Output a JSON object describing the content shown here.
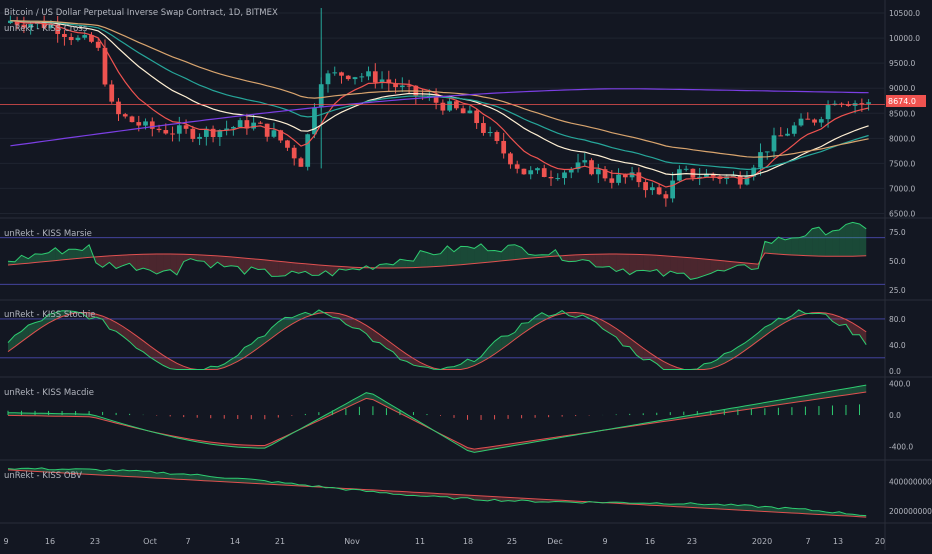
{
  "header": {
    "symbol_title": "Bitcoin / US Dollar Perpetual Inverse Swap Contract, 1D, BITMEX",
    "overlay_title": "unRekt - KISS Cross"
  },
  "price_tag": "8674.0",
  "colors": {
    "background": "#131722",
    "grid": "#1f2430",
    "up": "#26a69a",
    "down": "#ef5350",
    "ema_fast": "#ef5350",
    "ema_slow": "#fff0d4",
    "ema_mid": "#26a69a",
    "ema_long": "#d8a46e",
    "ema_200": "#7b3fe4",
    "signal_green": "#2ecc71",
    "signal_red": "#e05050",
    "band": "#4a4ab0",
    "axis_text": "#b2b5be"
  },
  "chart_data": [
    {
      "type": "candlestick",
      "title": "Bitcoin / US Dollar Perpetual Inverse Swap Contract, 1D, BITMEX",
      "overlay": "unRekt - KISS Cross",
      "yticks": [
        "10500.0",
        "10000.0",
        "9500.0",
        "9000.0",
        "8500.0",
        "8000.0",
        "7500.0",
        "7000.0",
        "6500.0"
      ],
      "ylim": [
        6450,
        10680
      ],
      "xticks": [
        "9",
        "16",
        "23",
        "Oct",
        "7",
        "14",
        "21",
        "Nov",
        "11",
        "18",
        "25",
        "Dec",
        "9",
        "16",
        "23",
        "2020",
        "7",
        "13",
        "20"
      ],
      "candle_sample": [
        {
          "o": 10350,
          "h": 10600,
          "c": 10300,
          "l": 10150
        },
        {
          "o": 10150,
          "h": 10250,
          "c": 9800,
          "l": 9700
        },
        {
          "o": 9800,
          "h": 9900,
          "c": 8450,
          "l": 8100
        },
        {
          "o": 8150,
          "h": 8400,
          "c": 8300,
          "l": 8000
        },
        {
          "o": 8300,
          "h": 8400,
          "c": 8200,
          "l": 7850
        },
        {
          "o": 7900,
          "h": 8400,
          "c": 8200,
          "l": 7750
        },
        {
          "o": 8200,
          "h": 8700,
          "c": 8350,
          "l": 8050
        },
        {
          "o": 8400,
          "h": 8450,
          "c": 8150,
          "l": 8050
        },
        {
          "o": 7800,
          "h": 8000,
          "c": 7400,
          "l": 7300
        },
        {
          "o": 7400,
          "h": 10500,
          "c": 9200,
          "l": 7300
        },
        {
          "o": 9300,
          "h": 9500,
          "c": 9250,
          "l": 9050
        },
        {
          "o": 9150,
          "h": 9350,
          "c": 9000,
          "l": 8850
        },
        {
          "o": 8800,
          "h": 9050,
          "c": 8600,
          "l": 8500
        },
        {
          "o": 8400,
          "h": 8550,
          "c": 8100,
          "l": 8000
        },
        {
          "o": 7700,
          "h": 7800,
          "c": 7100,
          "l": 6800
        },
        {
          "o": 7200,
          "h": 7600,
          "c": 7350,
          "l": 6600
        },
        {
          "o": 7450,
          "h": 7700,
          "c": 7350,
          "l": 7100
        },
        {
          "o": 7300,
          "h": 7450,
          "c": 7100,
          "l": 7000
        },
        {
          "o": 7100,
          "h": 7200,
          "c": 6700,
          "l": 6550
        },
        {
          "o": 6900,
          "h": 7350,
          "c": 7250,
          "l": 6850
        },
        {
          "o": 7200,
          "h": 7400,
          "c": 7300,
          "l": 7100
        },
        {
          "o": 7300,
          "h": 7600,
          "c": 7150,
          "l": 6900
        },
        {
          "o": 7200,
          "h": 8300,
          "c": 8100,
          "l": 7100
        },
        {
          "o": 8150,
          "h": 8450,
          "c": 8400,
          "l": 7900
        },
        {
          "o": 8200,
          "h": 9000,
          "c": 8850,
          "l": 8150
        },
        {
          "o": 8900,
          "h": 8950,
          "c": 8674,
          "l": 8600
        }
      ]
    },
    {
      "type": "line",
      "title": "unRekt - KISS Marsie",
      "yticks": [
        "75.0",
        "50.0",
        "25.0"
      ],
      "ylim": [
        20,
        80
      ]
    },
    {
      "type": "line",
      "title": "unRekt - KISS Stochie",
      "yticks": [
        "80.0",
        "40.0",
        "0.0"
      ],
      "ylim": [
        -5,
        100
      ]
    },
    {
      "type": "bar",
      "title": "unRekt - KISS Macdie",
      "yticks": [
        "400.0",
        "0.0",
        "-400.0"
      ],
      "ylim": [
        -520,
        420
      ]
    },
    {
      "type": "area",
      "title": "unRekt - KISS OBV",
      "yticks": [
        "4000000000.0",
        "2000000000.0"
      ],
      "ylim": [
        1400000000,
        5200000000
      ]
    }
  ]
}
